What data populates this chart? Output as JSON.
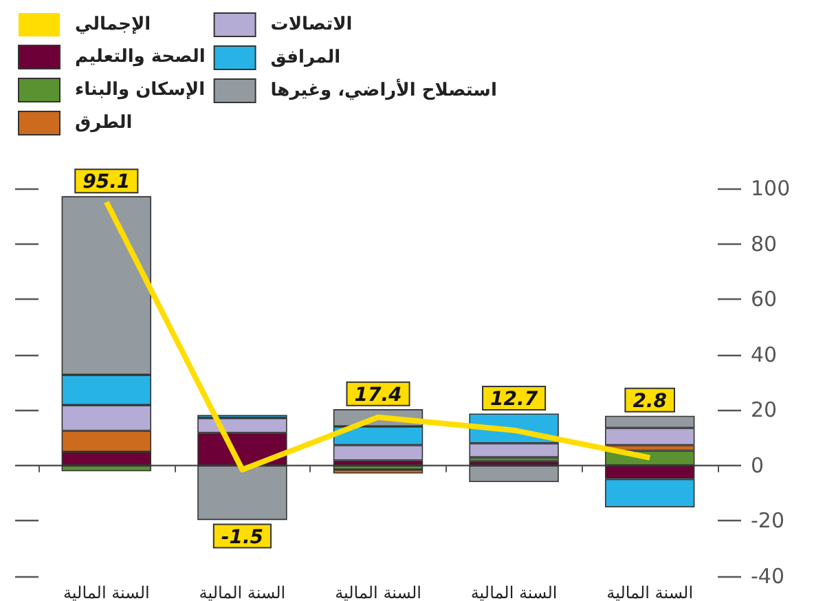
{
  "chart_data": {
    "type": "bar",
    "stacked": true,
    "categories": [
      "السنة المالية",
      "السنة المالية",
      "السنة المالية",
      "السنة المالية",
      "السنة المالية"
    ],
    "ylim": [
      -40,
      100
    ],
    "yticks": [
      -40,
      -20,
      0,
      20,
      40,
      60,
      80,
      100
    ],
    "legend": "top left",
    "series": [
      {
        "name": "الإجمالي",
        "type": "line",
        "color": "#ffdd00",
        "values": [
          95.1,
          -1.5,
          17.4,
          12.7,
          2.8
        ],
        "value_labels": [
          "95.1",
          "-1.5",
          "17.4",
          "12.7",
          "2.8"
        ]
      },
      {
        "name": "الصحة والتعليم",
        "color": "#6d0036",
        "values": [
          4.9,
          11.7,
          1.8,
          1.5,
          -4.9
        ]
      },
      {
        "name": "الإسكان والبناء",
        "color": "#5a9232",
        "values": [
          -2.1,
          null,
          -1.5,
          1.4,
          5.3
        ]
      },
      {
        "name": "الطرق",
        "color": "#cc6b1e",
        "values": [
          7.6,
          null,
          -1.4,
          null,
          2.0
        ]
      },
      {
        "name": "الاتصالات",
        "color": "#b5acd5",
        "values": [
          9.3,
          5.4,
          5.5,
          5.1,
          6.2
        ]
      },
      {
        "name": "المرافق",
        "color": "#27b3e6",
        "values": [
          10.9,
          1.1,
          6.8,
          10.7,
          -10.2
        ]
      },
      {
        "name": "استصلاح الأراضي، وغيرها",
        "color": "#939aa0",
        "values": [
          64.5,
          -19.7,
          6.2,
          -6.0,
          4.4
        ]
      }
    ]
  }
}
